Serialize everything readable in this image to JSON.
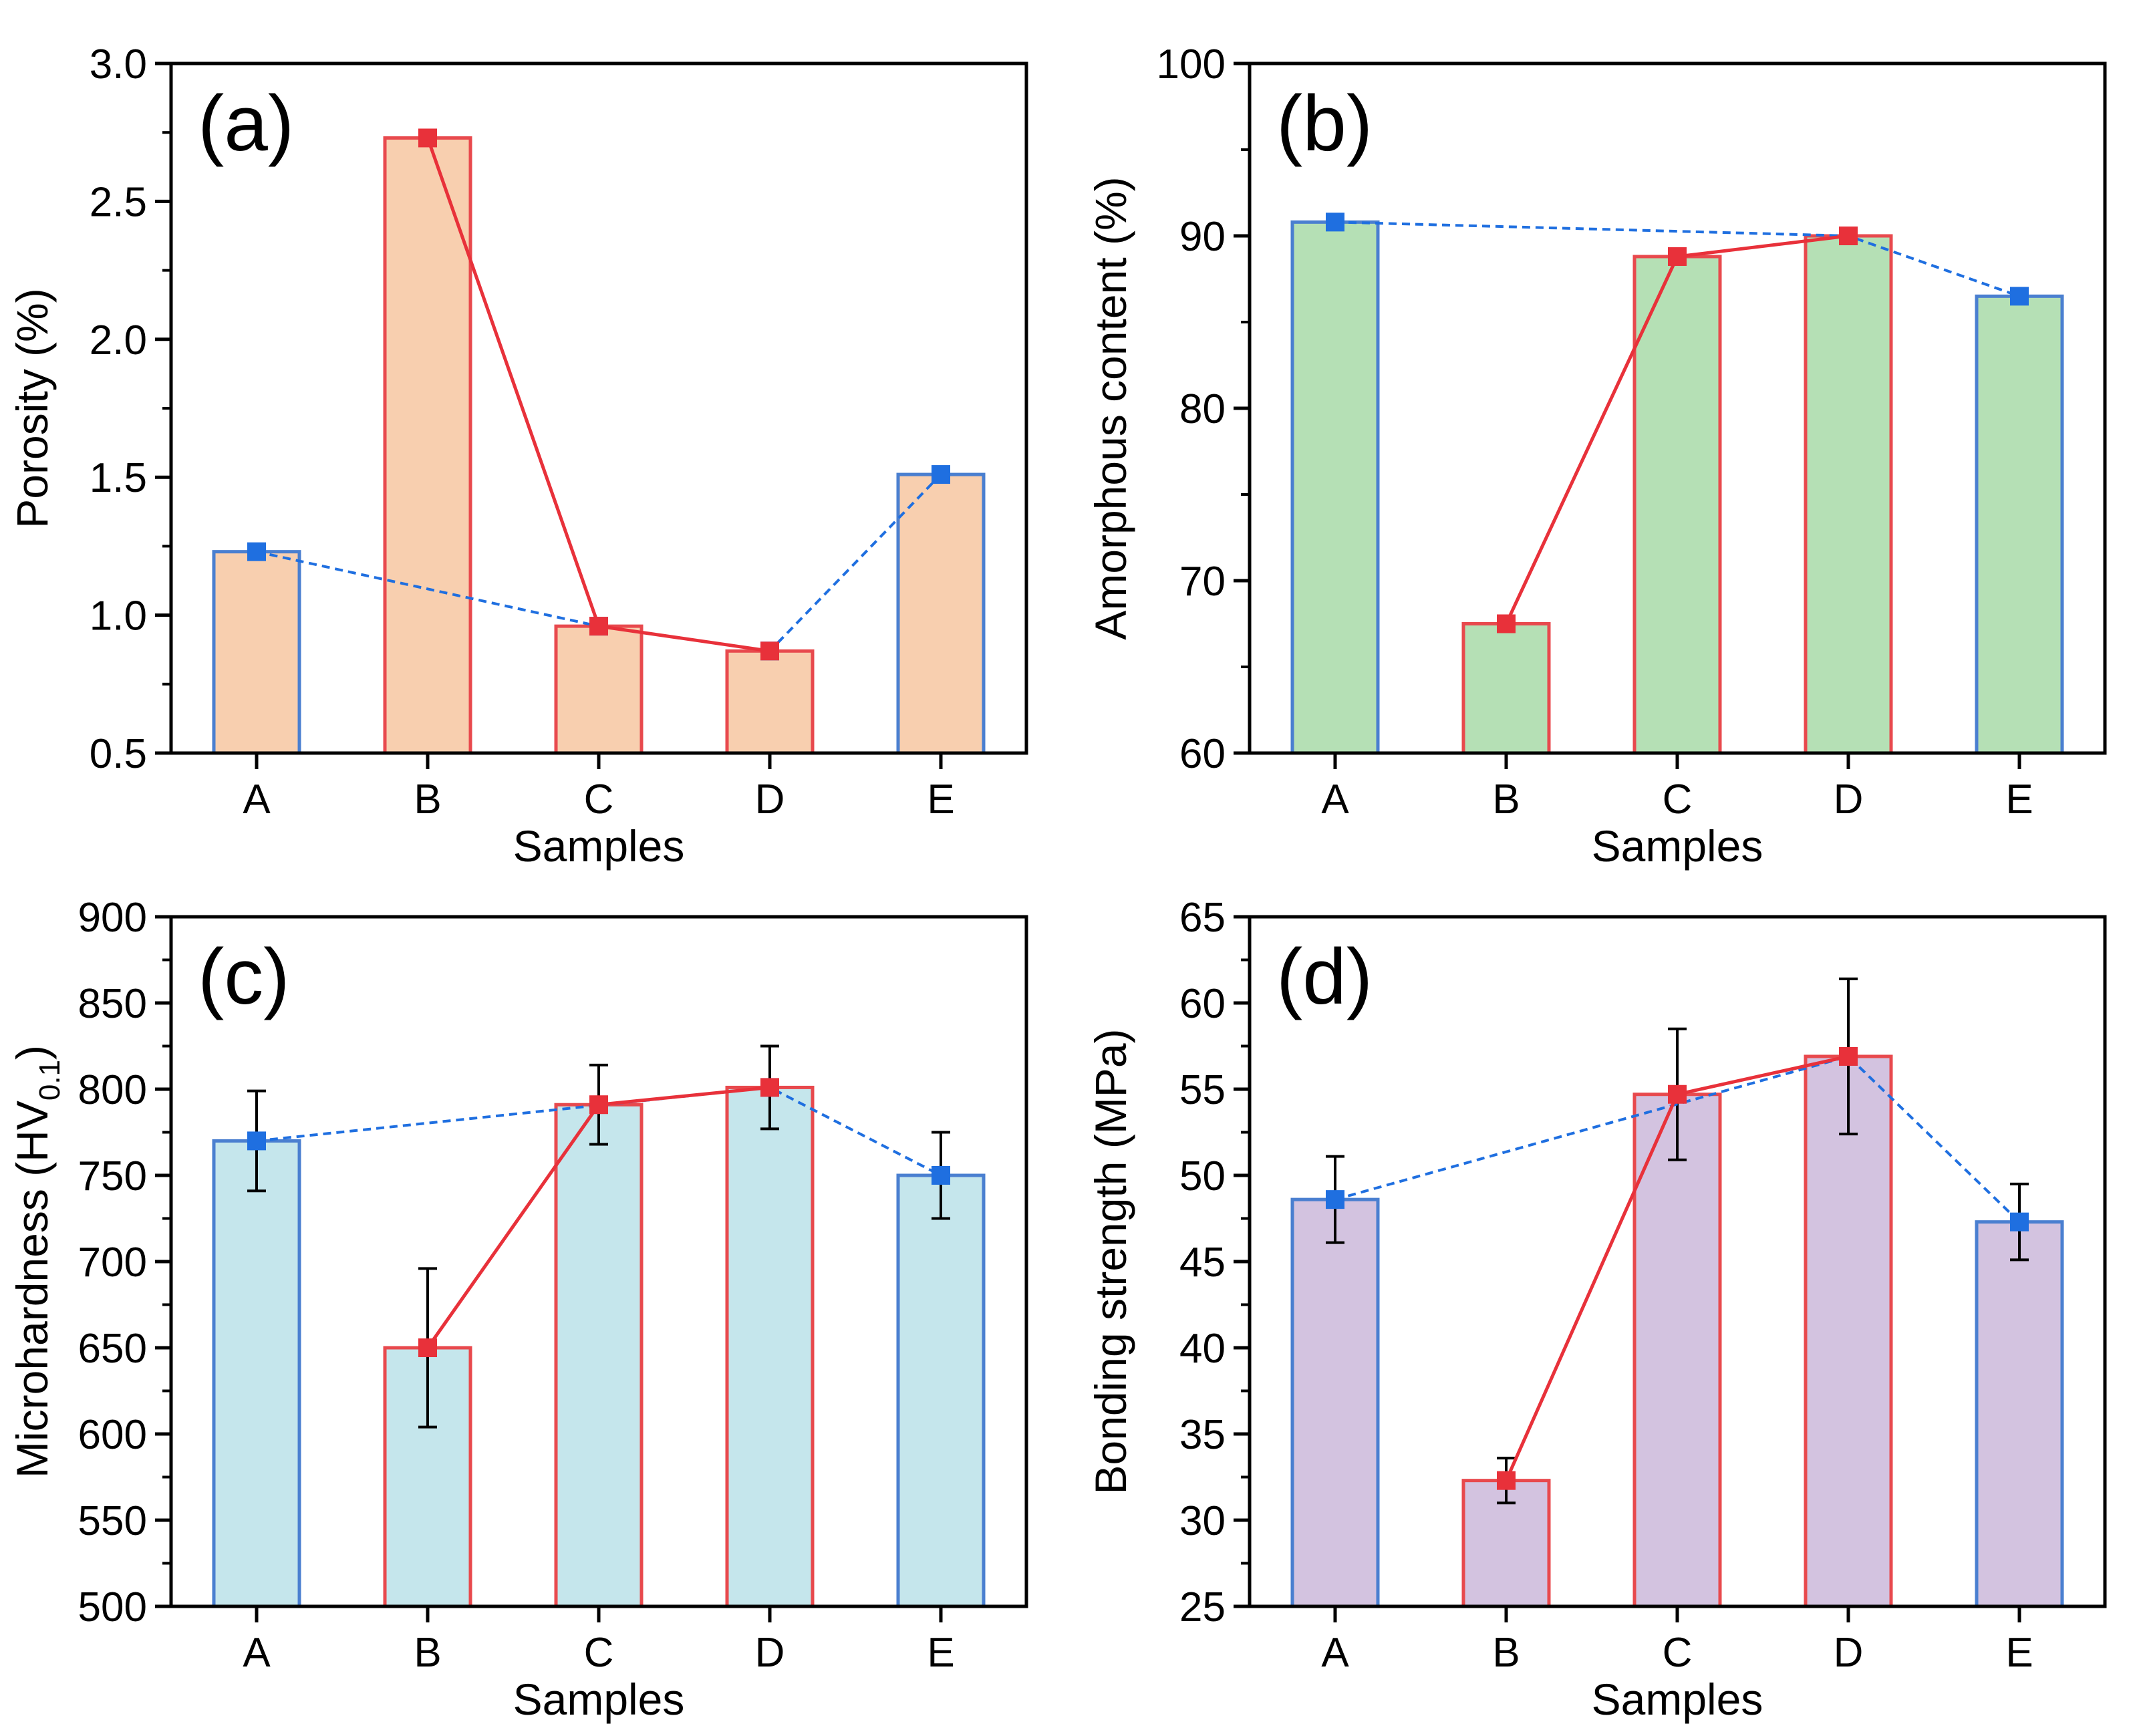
{
  "figure": {
    "sub_series_names": [
      "blue",
      "red"
    ]
  },
  "chart_data": [
    {
      "type": "bar",
      "panel_label": "(a)",
      "categories": [
        "A",
        "B",
        "C",
        "D",
        "E"
      ],
      "values": [
        1.23,
        2.73,
        0.96,
        0.87,
        1.51
      ],
      "errors": null,
      "fill_color": "#f8cfaf",
      "bar_edge_colors": [
        "#4a7fd0",
        "#e8494d",
        "#e8494d",
        "#e8494d",
        "#4a7fd0"
      ],
      "blue_series": {
        "categories": [
          "A",
          "C",
          "D",
          "E"
        ],
        "values": [
          1.23,
          0.96,
          0.87,
          1.51
        ],
        "color": "#1f6fe0",
        "style": "dashed"
      },
      "red_series": {
        "categories": [
          "B",
          "C",
          "D"
        ],
        "values": [
          2.73,
          0.96,
          0.87
        ],
        "color": "#e8313a",
        "style": "solid"
      },
      "xlabel": "Samples",
      "ylabel": "Porosity (%)",
      "ylabel_sub": "",
      "ylim": [
        0.5,
        3.0
      ],
      "yticks": [
        0.5,
        1.0,
        1.5,
        2.0,
        2.5,
        3.0
      ],
      "ytick_labels": [
        "0.5",
        "1.0",
        "1.5",
        "2.0",
        "2.5",
        "3.0"
      ]
    },
    {
      "type": "bar",
      "panel_label": "(b)",
      "categories": [
        "A",
        "B",
        "C",
        "D",
        "E"
      ],
      "values": [
        90.8,
        67.5,
        88.8,
        90.0,
        86.5
      ],
      "errors": null,
      "fill_color": "#b5e0b5",
      "bar_edge_colors": [
        "#4a7fd0",
        "#e8494d",
        "#e8494d",
        "#e8494d",
        "#4a7fd0"
      ],
      "blue_series": {
        "categories": [
          "A",
          "D",
          "E"
        ],
        "values": [
          90.8,
          90.0,
          86.5
        ],
        "color": "#1f6fe0",
        "style": "dashed"
      },
      "red_series": {
        "categories": [
          "B",
          "C",
          "D"
        ],
        "values": [
          67.5,
          88.8,
          90.0
        ],
        "color": "#e8313a",
        "style": "solid"
      },
      "xlabel": "Samples",
      "ylabel": "Amorphous content (%)",
      "ylabel_sub": "",
      "ylim": [
        60,
        100
      ],
      "yticks": [
        60,
        70,
        80,
        90,
        100
      ],
      "ytick_labels": [
        "60",
        "70",
        "80",
        "90",
        "100"
      ]
    },
    {
      "type": "bar",
      "panel_label": "(c)",
      "categories": [
        "A",
        "B",
        "C",
        "D",
        "E"
      ],
      "values": [
        770,
        650,
        791,
        801,
        750
      ],
      "errors": [
        29,
        46,
        23,
        24,
        25
      ],
      "fill_color": "#c5e6ec",
      "bar_edge_colors": [
        "#4a7fd0",
        "#e8494d",
        "#e8494d",
        "#e8494d",
        "#4a7fd0"
      ],
      "blue_series": {
        "categories": [
          "A",
          "D",
          "E"
        ],
        "values": [
          770,
          801,
          750
        ],
        "color": "#1f6fe0",
        "style": "dashed"
      },
      "red_series": {
        "categories": [
          "B",
          "C",
          "D"
        ],
        "values": [
          650,
          791,
          801
        ],
        "color": "#e8313a",
        "style": "solid"
      },
      "xlabel": "Samples",
      "ylabel": "Microhardness (HV",
      "ylabel_sub": "0.1",
      "ylabel_suffix": ")",
      "ylim": [
        500,
        900
      ],
      "yticks": [
        500,
        550,
        600,
        650,
        700,
        750,
        800,
        850,
        900
      ],
      "ytick_labels": [
        "500",
        "550",
        "600",
        "650",
        "700",
        "750",
        "800",
        "850",
        "900"
      ]
    },
    {
      "type": "bar",
      "panel_label": "(d)",
      "categories": [
        "A",
        "B",
        "C",
        "D",
        "E"
      ],
      "values": [
        48.6,
        32.3,
        54.7,
        56.9,
        47.3
      ],
      "errors": [
        2.5,
        1.3,
        3.8,
        4.5,
        2.2
      ],
      "fill_color": "#d3c3e0",
      "bar_edge_colors": [
        "#4a7fd0",
        "#e8494d",
        "#e8494d",
        "#e8494d",
        "#4a7fd0"
      ],
      "blue_series": {
        "categories": [
          "A",
          "D",
          "E"
        ],
        "values": [
          48.6,
          56.9,
          47.3
        ],
        "color": "#1f6fe0",
        "style": "dashed"
      },
      "red_series": {
        "categories": [
          "B",
          "C",
          "D"
        ],
        "values": [
          32.3,
          54.7,
          56.9
        ],
        "color": "#e8313a",
        "style": "solid"
      },
      "xlabel": "Samples",
      "ylabel": "Bonding strength (MPa)",
      "ylabel_sub": "",
      "ylim": [
        25,
        65
      ],
      "yticks": [
        25,
        30,
        35,
        40,
        45,
        50,
        55,
        60,
        65
      ],
      "ytick_labels": [
        "25",
        "30",
        "35",
        "40",
        "45",
        "50",
        "55",
        "60",
        "65"
      ]
    }
  ]
}
